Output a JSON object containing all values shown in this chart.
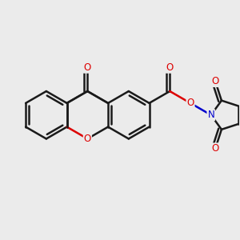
{
  "bg_color": "#ebebeb",
  "bond_color": "#1a1a1a",
  "oxygen_color": "#dd0000",
  "nitrogen_color": "#0000cc",
  "bond_width": 1.8,
  "dbo": 0.055,
  "figsize": [
    3.0,
    3.0
  ],
  "dpi": 100,
  "xlim": [
    -1.9,
    1.9
  ],
  "ylim": [
    -1.5,
    1.5
  ]
}
